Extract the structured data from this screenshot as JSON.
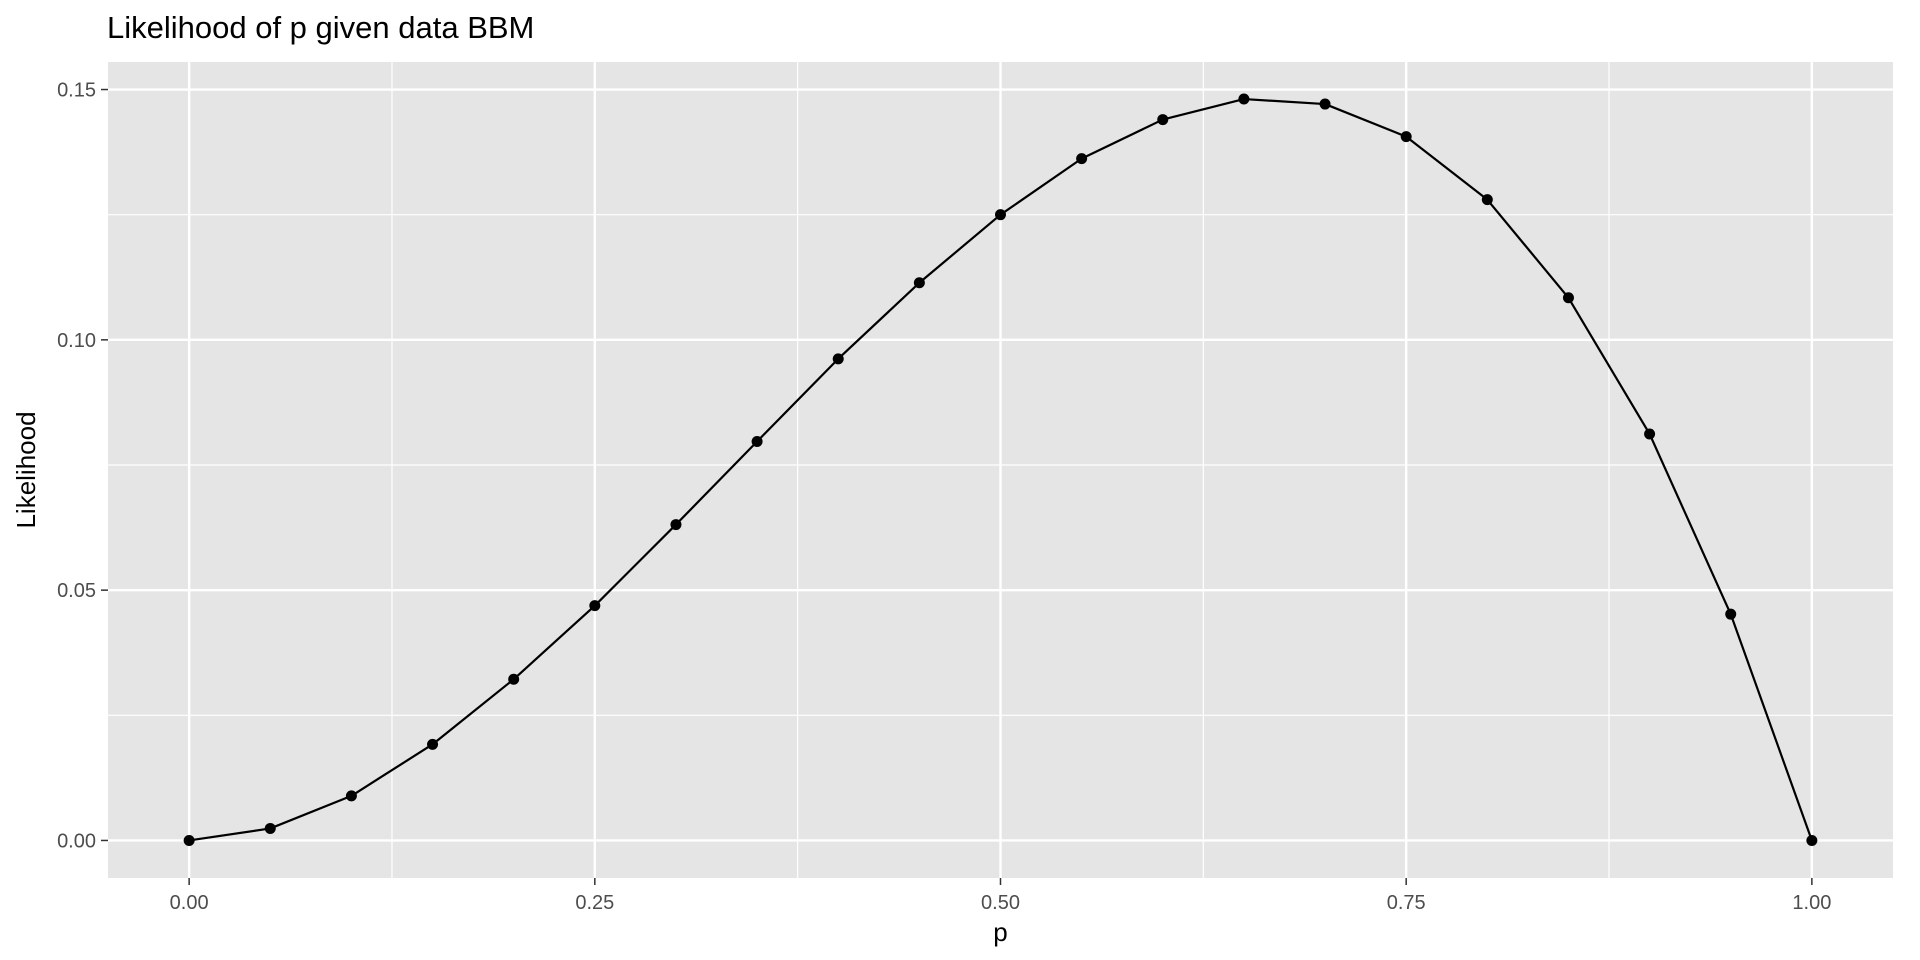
{
  "chart_data": {
    "type": "line",
    "title": "Likelihood of p given data BBM",
    "xlabel": "p",
    "ylabel": "Likelihood",
    "xlim": [
      -0.05,
      1.05
    ],
    "ylim": [
      -0.0075,
      0.1555
    ],
    "x_ticks": [
      0.0,
      0.25,
      0.5,
      0.75,
      1.0
    ],
    "x_tick_labels": [
      "0.00",
      "0.25",
      "0.50",
      "0.75",
      "1.00"
    ],
    "y_ticks": [
      0.0,
      0.05,
      0.1,
      0.15
    ],
    "y_tick_labels": [
      "0.00",
      "0.05",
      "0.10",
      "0.15"
    ],
    "grid": true,
    "markers": true,
    "colors": {
      "panel": "#e5e5e5",
      "grid": "#ffffff",
      "line": "#000000",
      "tick": "#333333"
    },
    "series": [
      {
        "x": [
          0.0,
          0.05,
          0.1,
          0.15,
          0.2,
          0.25,
          0.3,
          0.35,
          0.4,
          0.45,
          0.5,
          0.55,
          0.6,
          0.65,
          0.7,
          0.75,
          0.8,
          0.85,
          0.9,
          0.95,
          1.0
        ],
        "values": [
          0.0,
          0.0024,
          0.0089,
          0.0192,
          0.0322,
          0.0469,
          0.0631,
          0.0797,
          0.0962,
          0.1114,
          0.125,
          0.1362,
          0.144,
          0.1481,
          0.1471,
          0.1406,
          0.128,
          0.1084,
          0.0812,
          0.0452,
          0.0
        ]
      }
    ]
  }
}
